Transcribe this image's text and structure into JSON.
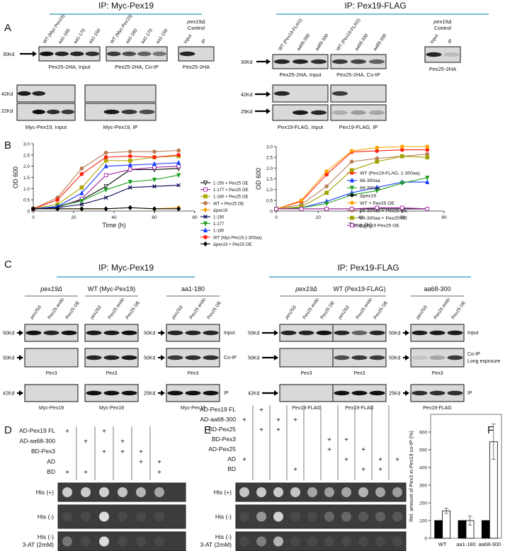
{
  "figure": {
    "headers": [
      "IP: Myc-Pex19",
      "IP: Pex19-FLAG"
    ],
    "panel_labels": [
      "A",
      "B",
      "C",
      "D",
      "E",
      "F"
    ]
  },
  "panel_a": {
    "myc": {
      "blots": [
        {
          "lanes": [
            "WT (Myc-Pex19)",
            "aa1-180",
            "aa1-170",
            "aa1-150"
          ],
          "caption": "Pex25-2HA, Input"
        },
        {
          "lanes": [
            "WT (Myc-Pex19)",
            "aa1-180",
            "aa1-170",
            "aa1-150"
          ],
          "caption": "Pex25-2HA, Co-IP"
        }
      ],
      "control": {
        "strain": "pex19Δ",
        "label": "Control",
        "lanes": [
          "Input",
          "IP"
        ],
        "caption": "Pex25-2HA"
      },
      "sizes": [
        "30Kd",
        "42Kd",
        "22Kd"
      ],
      "lower_captions": [
        "Myc-Pex19, Input",
        "Myc-Pex19, IP"
      ]
    },
    "flag": {
      "blots": [
        {
          "lanes": [
            "WT (Pex19-FLAG)",
            "aa68-300",
            "aa89-300"
          ],
          "caption": "Pex25-2HA, Input"
        },
        {
          "lanes": [
            "WT (Pex19-FLAG)",
            "aa68-300",
            "aa89-300"
          ],
          "caption": "Pex25-2HA, Co-IP"
        }
      ],
      "control": {
        "strain": "pex19Δ",
        "label": "Control",
        "lanes": [
          "Input",
          "IP"
        ],
        "caption": "Pex25-2HA"
      },
      "sizes": [
        "30Kd",
        "42Kd",
        "25Kd"
      ],
      "lower_captions": [
        "Pex19-FLAG, Input",
        "Pex19-FLAG, IP"
      ]
    }
  },
  "panel_c": {
    "myc": {
      "header": "IP: Myc-Pex19",
      "groups": [
        {
          "title": "pex19Δ",
          "lanes": [
            "pex25Δ",
            "Pex25 endo",
            "Pex25 OE"
          ],
          "sizes": [
            "50Kd",
            "50Kd",
            "42Kd"
          ],
          "captions": [
            "Pex3",
            "Myc-Pex19"
          ]
        },
        {
          "title": "WT (Myc-Pex19)",
          "lanes": [
            "pex25Δ",
            "Pex25 endo",
            "Pex25 OE"
          ],
          "captions": [
            "Pex3",
            "Myc-Pex19"
          ]
        },
        {
          "title": "aa1-180",
          "lanes": [
            "pex25Δ",
            "Pex25 endo",
            "Pex25 OE"
          ],
          "sizes": [
            "50Kd",
            "50Kd",
            "25Kd"
          ],
          "captions": [
            "Pex3",
            "Myc-Pex19"
          ]
        }
      ],
      "row_labels": [
        "Input",
        "Co-IP",
        "IP"
      ]
    },
    "flag": {
      "header": "IP: Pex19-FLAG",
      "groups": [
        {
          "title": "pex19Δ",
          "lanes": [
            "pex25Δ",
            "Pex25 endo",
            "Pex25 OE"
          ],
          "sizes": [
            "50Kd",
            "50Kd",
            "42Kd"
          ],
          "captions": [
            "Pex3",
            "Pex19-FLAG"
          ]
        },
        {
          "title": "WT (Pex19-FLAG)",
          "lanes": [
            "pex25Δ",
            "Pex25 endo",
            "Pex25 OE"
          ],
          "captions": [
            "Pex3",
            "Pex19-FLAG"
          ]
        },
        {
          "title": "aa68-300",
          "lanes": [
            "pex25Δ",
            "Pex25 endo",
            "Pex25 OE"
          ],
          "sizes": [
            "50Kd",
            "50Kd",
            "25Kd"
          ],
          "captions": [
            "Pex3",
            "Pex19-FLAG"
          ]
        }
      ],
      "row_labels": [
        "Input",
        "Co-IP",
        "IP"
      ],
      "row_note": "Long exposure"
    }
  },
  "panel_d": {
    "rows": [
      {
        "label": "AD-Pex19 FL",
        "marks": [
          "+",
          null,
          "+",
          null,
          null,
          null
        ]
      },
      {
        "label": "AD-aa68-300",
        "marks": [
          null,
          "+",
          null,
          "+",
          null,
          null
        ]
      },
      {
        "label": "BD-Pex3",
        "marks": [
          null,
          null,
          "+",
          "+",
          "+",
          null
        ]
      },
      {
        "label": "AD",
        "marks": [
          null,
          null,
          null,
          null,
          "+",
          "+"
        ]
      },
      {
        "label": "BD",
        "marks": [
          "+",
          "+",
          null,
          null,
          null,
          "+"
        ]
      }
    ],
    "plates": [
      {
        "label": "His (+)"
      },
      {
        "label": "His (-)"
      },
      {
        "label": "His (-)",
        "sublabel": "3-AT (2mM)"
      }
    ]
  },
  "panel_e": {
    "rows": [
      {
        "label": "AD-Pex19 FL",
        "marks": [
          null,
          "+",
          null,
          null,
          null,
          null,
          null,
          null,
          null,
          null
        ]
      },
      {
        "label": "AD-aa68-300",
        "marks": [
          "+",
          null,
          "+",
          "+",
          null,
          null,
          null,
          null,
          null,
          null
        ]
      },
      {
        "label": "BD-Pex25",
        "marks": [
          null,
          "+",
          "+",
          null,
          null,
          null,
          null,
          null,
          null,
          null
        ]
      },
      {
        "label": "BD-Pex3",
        "marks": [
          null,
          null,
          null,
          null,
          null,
          "+",
          "+",
          null,
          null,
          null
        ]
      },
      {
        "label": "AD-Pex25",
        "marks": [
          null,
          null,
          null,
          null,
          null,
          "+",
          null,
          "+",
          null,
          null
        ]
      },
      {
        "label": "AD",
        "marks": [
          "+",
          null,
          null,
          null,
          null,
          null,
          "+",
          null,
          "+",
          "+"
        ]
      },
      {
        "label": "BD",
        "marks": [
          null,
          null,
          null,
          "+",
          null,
          null,
          null,
          "+",
          "+",
          null
        ]
      }
    ],
    "plates": [
      {
        "label": "His (+)"
      },
      {
        "label": "His (-)"
      },
      {
        "label": "His (-)",
        "sublabel": "3-AT (2mM)"
      }
    ]
  },
  "chart_data": [
    {
      "type": "line",
      "xlabel": "Time (h)",
      "ylabel": "OD 600",
      "x": [
        0,
        12,
        24,
        36,
        48,
        60,
        72
      ],
      "xlim": [
        0,
        80
      ],
      "xticks": [
        0,
        20,
        40,
        60,
        80
      ],
      "ylim": [
        0,
        3
      ],
      "yticks": [
        0,
        0.5,
        {
          "value": 1,
          "label": "1.0"
        },
        1.5,
        {
          "value": 2,
          "label": "2.0"
        },
        2.5,
        {
          "value": 3,
          "label": "3.0"
        }
      ],
      "legend": "right",
      "series": [
        {
          "name": "1-150 + Pex25 OE",
          "color": "#000000",
          "marker": "tri-down",
          "open": true,
          "values": [
            0.1,
            0.2,
            0.5,
            1.1,
            1.85,
            1.85,
            1.9
          ]
        },
        {
          "name": "1-177 + Pex25 OE",
          "color": "#a020a0",
          "marker": "square",
          "open": true,
          "values": [
            0.1,
            0.15,
            0.55,
            1.6,
            1.85,
            1.95,
            2.0
          ]
        },
        {
          "name": "1-180 + Pex25 OE",
          "color": "#b0a800",
          "marker": "square",
          "open": false,
          "values": [
            0.1,
            0.3,
            1.05,
            2.25,
            2.25,
            2.4,
            2.45
          ]
        },
        {
          "name": "WT + Pex25 OE",
          "color": "#b87a50",
          "marker": "circle",
          "open": false,
          "values": [
            0.1,
            0.6,
            1.9,
            2.6,
            2.65,
            2.65,
            2.7
          ]
        },
        {
          "name": "Δpex19",
          "color": "#f0a000",
          "marker": "diamond",
          "open": false,
          "values": [
            0.1,
            0.1,
            0.1,
            0.1,
            0.15,
            0.1,
            0.15
          ]
        },
        {
          "name": "1-150",
          "color": "#000050",
          "marker": "cross",
          "open": false,
          "values": [
            0.1,
            0.15,
            0.3,
            0.6,
            1.05,
            1.1,
            1.15
          ]
        },
        {
          "name": "1-177",
          "color": "#20a020",
          "marker": "tri-down",
          "open": false,
          "values": [
            0.1,
            0.2,
            0.45,
            0.95,
            1.3,
            1.4,
            1.6
          ]
        },
        {
          "name": "1-180",
          "color": "#1a3cff",
          "marker": "tri-up",
          "open": false,
          "values": [
            0.1,
            0.2,
            0.8,
            2.0,
            2.05,
            2.1,
            2.15
          ]
        },
        {
          "name": "WT (Myc-Pex19,1-300aa)",
          "color": "#ff2010",
          "marker": "circle",
          "open": false,
          "values": [
            0.1,
            0.5,
            1.65,
            2.4,
            2.45,
            2.4,
            2.5
          ]
        },
        {
          "name": "Δpex19 + Pex25 OE",
          "color": "#000000",
          "marker": "diamond",
          "open": false,
          "values": [
            0.1,
            0.1,
            0.1,
            0.1,
            0.15,
            0.1,
            0.1
          ]
        }
      ]
    },
    {
      "type": "line",
      "xlabel": "Time (h)",
      "ylabel": "OD 600",
      "x": [
        0,
        12,
        24,
        36,
        48,
        60,
        72
      ],
      "xlim": [
        0,
        80
      ],
      "xticks": [
        0,
        20,
        40,
        60,
        80
      ],
      "ylim": [
        0,
        3
      ],
      "yticks": [
        0,
        0.5,
        {
          "value": 1,
          "label": "1.0"
        },
        1.5,
        {
          "value": 2,
          "label": "2.0"
        },
        2.5,
        {
          "value": 3,
          "label": "3.0"
        }
      ],
      "legend": "lower right",
      "series": [
        {
          "name": "WT (Pex19-FLAG, 1-300aa)",
          "color": "#ff2010",
          "marker": "circle",
          "open": false,
          "values": [
            0.1,
            0.45,
            1.7,
            2.75,
            2.8,
            2.85,
            2.85
          ]
        },
        {
          "name": "68-300aa",
          "color": "#1a3cff",
          "marker": "tri-up",
          "open": false,
          "values": [
            0.1,
            0.15,
            0.45,
            0.85,
            1.1,
            1.35,
            1.35
          ]
        },
        {
          "name": "89-300aa",
          "color": "#20a020",
          "marker": "tri-down",
          "open": false,
          "values": [
            0.1,
            0.15,
            0.35,
            0.75,
            0.95,
            1.3,
            1.55
          ]
        },
        {
          "name": "Δpex19",
          "color": "#000000",
          "marker": "star",
          "open": false,
          "values": [
            0.1,
            0.1,
            0.1,
            0.1,
            0.1,
            0.1,
            0.1
          ]
        },
        {
          "name": "WT + Pex25 OE",
          "color": "#ffa500",
          "marker": "circle",
          "open": false,
          "values": [
            0.1,
            0.5,
            1.85,
            2.8,
            2.95,
            3.0,
            3.0
          ]
        },
        {
          "name": "68-300aa + Pex25 OE",
          "color": "#b8805a",
          "marker": "circle",
          "open": false,
          "values": [
            0.1,
            0.3,
            1.15,
            2.3,
            2.45,
            2.55,
            2.65
          ]
        },
        {
          "name": "89-300aa + Pex25 OE",
          "color": "#a0a000",
          "marker": "square",
          "open": false,
          "values": [
            0.1,
            0.2,
            0.85,
            1.9,
            2.3,
            2.55,
            2.5
          ]
        },
        {
          "name": "Δpex19 Pex25 OE",
          "color": "#a020a0",
          "marker": "square",
          "open": true,
          "values": [
            0.1,
            0.1,
            0.1,
            0.1,
            0.15,
            0.15,
            0.1
          ]
        }
      ]
    },
    {
      "type": "bar",
      "ylabel": "Rel. amount of Pex3 in Pex19 co-IP (%)",
      "categories": [
        "WT",
        "aa1-180",
        "aa68-300"
      ],
      "ylim": [
        0,
        700
      ],
      "yticks": [
        0,
        100,
        200,
        300,
        400,
        500,
        600
      ],
      "series": [
        {
          "color": "#000000",
          "values": [
            100,
            100,
            100
          ]
        },
        {
          "color": "#ffffff",
          "values": [
            155,
            100,
            545
          ],
          "errors": [
            15,
            25,
            100
          ]
        }
      ]
    }
  ]
}
